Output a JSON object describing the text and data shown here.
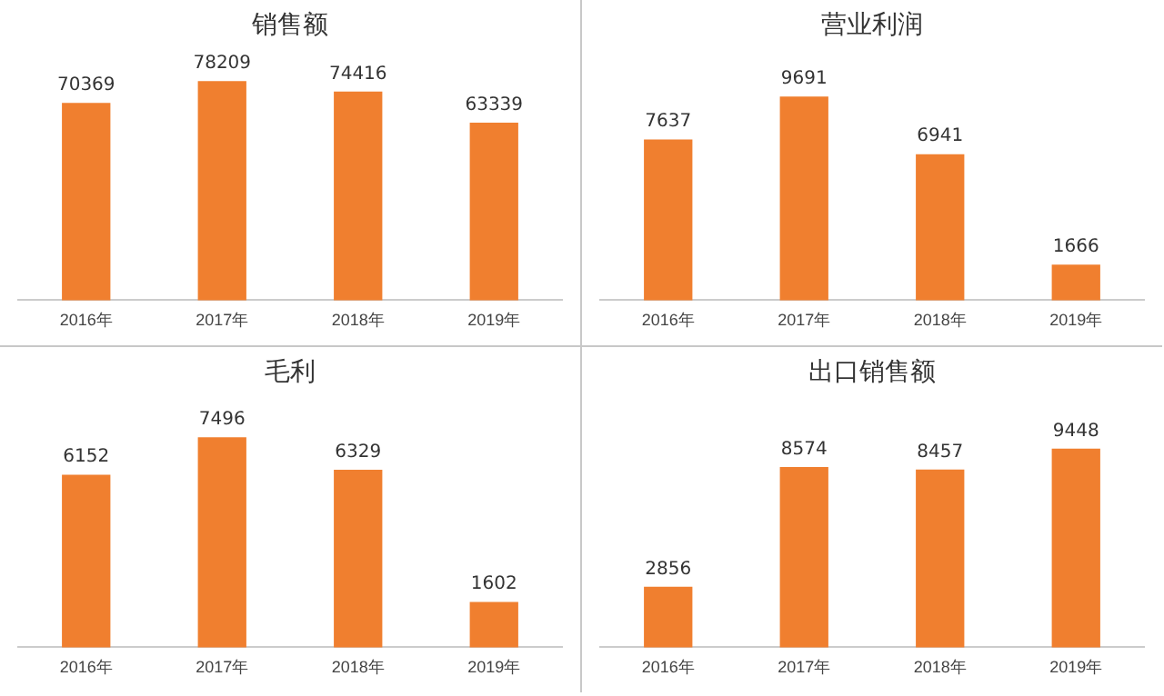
{
  "chart_data": [
    {
      "type": "bar",
      "title": "销售额",
      "categories": [
        "2016年",
        "2017年",
        "2018年",
        "2019年"
      ],
      "values": [
        70369,
        78209,
        74416,
        63339
      ],
      "color": "#f07f2f",
      "data_labels": true,
      "grid": false,
      "legend": false,
      "tick_labels": "x"
    },
    {
      "type": "bar",
      "title": "营业利润",
      "categories": [
        "2016年",
        "2017年",
        "2018年",
        "2019年"
      ],
      "values": [
        7637,
        9691,
        6941,
        1666
      ],
      "color": "#f07f2f",
      "data_labels": true,
      "grid": false,
      "legend": false,
      "tick_labels": "x"
    },
    {
      "type": "bar",
      "title": "毛利",
      "categories": [
        "2016年",
        "2017年",
        "2018年",
        "2019年"
      ],
      "values": [
        6152,
        7496,
        6329,
        1602
      ],
      "color": "#f07f2f",
      "data_labels": true,
      "grid": false,
      "legend": false,
      "tick_labels": "x"
    },
    {
      "type": "bar",
      "title": "出口销售额",
      "categories": [
        "2016年",
        "2017年",
        "2018年",
        "2019年"
      ],
      "values": [
        2856,
        8574,
        8457,
        9448
      ],
      "color": "#f07f2f",
      "data_labels": true,
      "grid": false,
      "legend": false,
      "tick_labels": "x"
    }
  ]
}
